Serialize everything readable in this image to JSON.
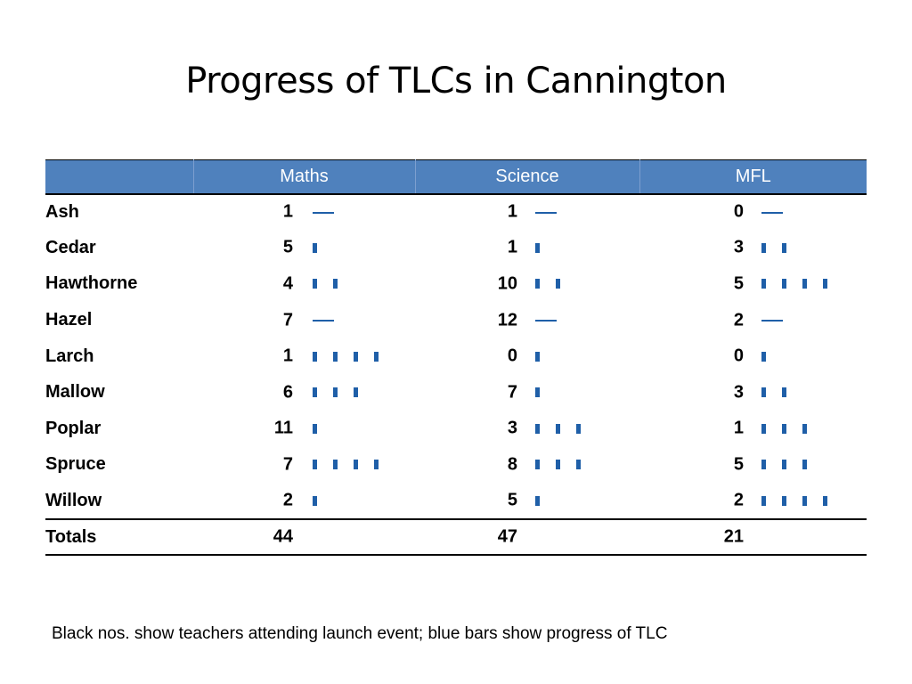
{
  "title": "Progress of TLCs in Cannington",
  "table": {
    "headers": [
      "",
      "Maths",
      "Science",
      "MFL"
    ],
    "rows": [
      {
        "school": "Ash",
        "cells": [
          {
            "n": "1",
            "p": 0
          },
          {
            "n": "1",
            "p": 0
          },
          {
            "n": "0",
            "p": 0
          }
        ]
      },
      {
        "school": "Cedar",
        "cells": [
          {
            "n": "5",
            "p": 1
          },
          {
            "n": "1",
            "p": 1
          },
          {
            "n": "3",
            "p": 2
          }
        ]
      },
      {
        "school": "Hawthorne",
        "cells": [
          {
            "n": "4",
            "p": 2
          },
          {
            "n": "10",
            "p": 2
          },
          {
            "n": "5",
            "p": 4
          }
        ]
      },
      {
        "school": "Hazel",
        "cells": [
          {
            "n": "7",
            "p": 0
          },
          {
            "n": "12",
            "p": 0
          },
          {
            "n": "2",
            "p": 0
          }
        ]
      },
      {
        "school": "Larch",
        "cells": [
          {
            "n": "1",
            "p": 4
          },
          {
            "n": "0",
            "p": 1
          },
          {
            "n": "0",
            "p": 1
          }
        ]
      },
      {
        "school": "Mallow",
        "cells": [
          {
            "n": "6",
            "p": 3
          },
          {
            "n": "7",
            "p": 1
          },
          {
            "n": "3",
            "p": 2
          }
        ]
      },
      {
        "school": "Poplar",
        "cells": [
          {
            "n": "11",
            "p": 1
          },
          {
            "n": "3",
            "p": 3
          },
          {
            "n": "1",
            "p": 3
          }
        ]
      },
      {
        "school": "Spruce",
        "cells": [
          {
            "n": "7",
            "p": 4
          },
          {
            "n": "8",
            "p": 3
          },
          {
            "n": "5",
            "p": 3
          }
        ]
      },
      {
        "school": "Willow",
        "cells": [
          {
            "n": "2",
            "p": 1
          },
          {
            "n": "5",
            "p": 1
          },
          {
            "n": "2",
            "p": 4
          }
        ]
      }
    ],
    "totals": {
      "label": "Totals",
      "values": [
        "44",
        "47",
        "21"
      ]
    }
  },
  "footnote": "Black nos. show teachers attending launch event; blue bars show progress of TLC",
  "colors": {
    "header_bg": "#4f81bd",
    "progress_mark": "#1f5fa8"
  }
}
